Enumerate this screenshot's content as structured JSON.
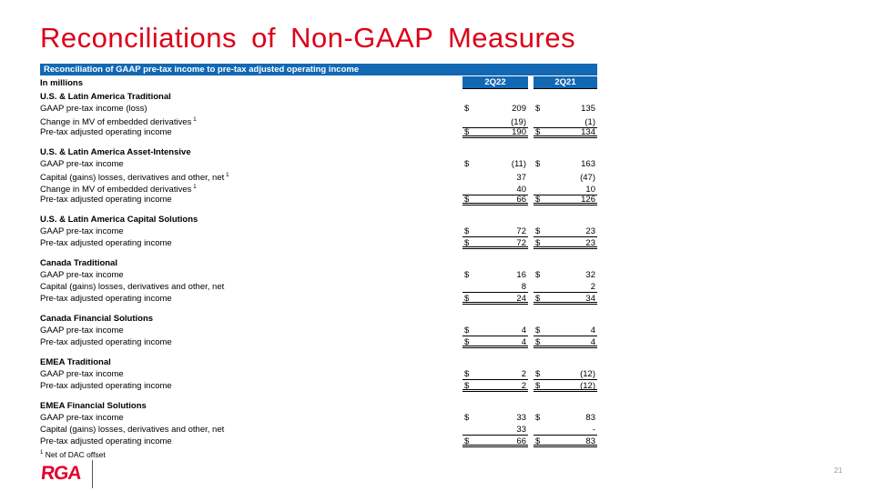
{
  "slide": {
    "title": "Reconciliations of Non-GAAP Measures",
    "page_number": "21",
    "logo_text": "RGA"
  },
  "colors": {
    "accent_blue": "#1268B3",
    "title_red": "#DC0019",
    "logo_red": "#E4002B",
    "page_number_gray": "#9a9a9a"
  },
  "table": {
    "banner": "Reconciliation of GAAP pre-tax income to pre-tax adjusted operating income",
    "units_label": "In millions",
    "columns": [
      "2Q22",
      "2Q21"
    ],
    "footnote_marker": "1",
    "footnote_text": "Net of DAC offset",
    "sections": [
      {
        "name": "U.S. & Latin America Traditional",
        "rows": [
          {
            "label": "GAAP pre-tax income (loss)",
            "sup": "",
            "dollar": true,
            "values": [
              "209",
              "135"
            ],
            "underline": "none"
          },
          {
            "label": "Change in MV of embedded derivatives",
            "sup": "1",
            "dollar": false,
            "values": [
              "(19)",
              "(1)"
            ],
            "underline": "single"
          },
          {
            "label": "Pre-tax adjusted operating income",
            "sup": "",
            "dollar": true,
            "values": [
              "190",
              "134"
            ],
            "underline": "double"
          }
        ]
      },
      {
        "name": "U.S. & Latin America Asset-Intensive",
        "rows": [
          {
            "label": "GAAP pre-tax income",
            "sup": "",
            "dollar": true,
            "values": [
              "(11)",
              "163"
            ],
            "underline": "none"
          },
          {
            "label": "Capital (gains) losses, derivatives and other, net",
            "sup": "1",
            "dollar": false,
            "values": [
              "37",
              "(47)"
            ],
            "underline": "none"
          },
          {
            "label": "Change in MV of embedded derivatives",
            "sup": "1",
            "dollar": false,
            "values": [
              "40",
              "10"
            ],
            "underline": "single"
          },
          {
            "label": "Pre-tax adjusted operating income",
            "sup": "",
            "dollar": true,
            "values": [
              "66",
              "126"
            ],
            "underline": "double"
          }
        ]
      },
      {
        "name": "U.S. & Latin America Capital Solutions",
        "rows": [
          {
            "label": "GAAP pre-tax income",
            "sup": "",
            "dollar": true,
            "values": [
              "72",
              "23"
            ],
            "underline": "single"
          },
          {
            "label": "Pre-tax adjusted operating income",
            "sup": "",
            "dollar": true,
            "values": [
              "72",
              "23"
            ],
            "underline": "double"
          }
        ]
      },
      {
        "name": "Canada Traditional",
        "rows": [
          {
            "label": "GAAP pre-tax income",
            "sup": "",
            "dollar": true,
            "values": [
              "16",
              "32"
            ],
            "underline": "none"
          },
          {
            "label": "Capital (gains) losses, derivatives and other, net",
            "sup": "",
            "dollar": false,
            "values": [
              "8",
              "2"
            ],
            "underline": "single"
          },
          {
            "label": "Pre-tax adjusted operating income",
            "sup": "",
            "dollar": true,
            "values": [
              "24",
              "34"
            ],
            "underline": "double"
          }
        ]
      },
      {
        "name": "Canada Financial Solutions",
        "rows": [
          {
            "label": "GAAP pre-tax income",
            "sup": "",
            "dollar": true,
            "values": [
              "4",
              "4"
            ],
            "underline": "single"
          },
          {
            "label": "Pre-tax adjusted operating income",
            "sup": "",
            "dollar": true,
            "values": [
              "4",
              "4"
            ],
            "underline": "double"
          }
        ]
      },
      {
        "name": "EMEA Traditional",
        "rows": [
          {
            "label": "GAAP pre-tax income",
            "sup": "",
            "dollar": true,
            "values": [
              "2",
              "(12)"
            ],
            "underline": "single"
          },
          {
            "label": "Pre-tax adjusted operating income",
            "sup": "",
            "dollar": true,
            "values": [
              "2",
              "(12)"
            ],
            "underline": "double"
          }
        ]
      },
      {
        "name": "EMEA Financial Solutions",
        "rows": [
          {
            "label": "GAAP pre-tax income",
            "sup": "",
            "dollar": true,
            "values": [
              "33",
              "83"
            ],
            "underline": "none"
          },
          {
            "label": "Capital (gains) losses, derivatives and other, net",
            "sup": "",
            "dollar": false,
            "values": [
              "33",
              "-"
            ],
            "underline": "single"
          },
          {
            "label": "Pre-tax adjusted operating income",
            "sup": "",
            "dollar": true,
            "values": [
              "66",
              "83"
            ],
            "underline": "double"
          }
        ]
      }
    ]
  }
}
